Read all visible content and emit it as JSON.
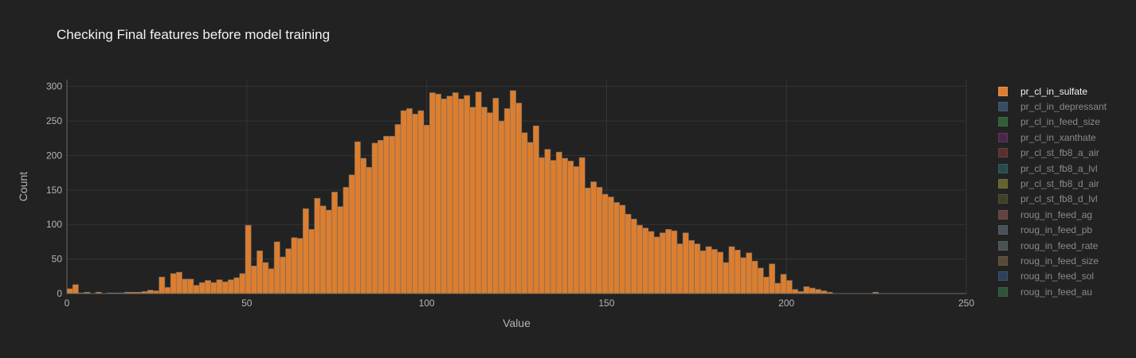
{
  "chart_data": {
    "type": "bar",
    "title": "Checking Final features before model training",
    "xlabel": "Value",
    "ylabel": "Count",
    "xlim": [
      0,
      250
    ],
    "ylim": [
      0,
      310
    ],
    "x_ticks": [
      "0",
      "50",
      "100",
      "150",
      "200",
      "250"
    ],
    "y_ticks": [
      "0",
      "50",
      "100",
      "150",
      "200",
      "250",
      "300"
    ],
    "grid": true,
    "legend_position": "right",
    "bin_width": 1.6,
    "bar_color": "#dc7e2f",
    "series": [
      {
        "name": "pr_cl_in_sulfate",
        "color": "#dc7e2f",
        "visible": true,
        "values": [
          7,
          13,
          1,
          2,
          0,
          2,
          0,
          1,
          1,
          1,
          2,
          2,
          2,
          3,
          5,
          4,
          24,
          9,
          29,
          31,
          21,
          21,
          12,
          16,
          19,
          16,
          20,
          17,
          20,
          23,
          29,
          99,
          40,
          62,
          45,
          36,
          75,
          53,
          65,
          81,
          80,
          123,
          93,
          138,
          127,
          121,
          147,
          126,
          154,
          172,
          220,
          196,
          183,
          218,
          222,
          228,
          228,
          245,
          265,
          268,
          260,
          265,
          244,
          291,
          289,
          282,
          286,
          291,
          282,
          287,
          270,
          292,
          270,
          262,
          283,
          250,
          268,
          294,
          276,
          233,
          219,
          243,
          197,
          209,
          193,
          205,
          196,
          192,
          184,
          197,
          153,
          162,
          154,
          144,
          140,
          132,
          128,
          115,
          108,
          99,
          95,
          90,
          82,
          88,
          93,
          91,
          72,
          88,
          77,
          72,
          62,
          68,
          64,
          60,
          45,
          68,
          63,
          52,
          59,
          47,
          37,
          24,
          43,
          15,
          28,
          19,
          6,
          3,
          10,
          8,
          6,
          4,
          2,
          0,
          0,
          0,
          0,
          0,
          0,
          0,
          2
        ]
      },
      {
        "name": "pr_cl_in_depressant",
        "color": "#4a6f9a",
        "visible": false
      },
      {
        "name": "pr_cl_in_feed_size",
        "color": "#3e8e47",
        "visible": false
      },
      {
        "name": "pr_cl_in_xanthate",
        "color": "#6e2a6e",
        "visible": false
      },
      {
        "name": "pr_cl_st_fb8_a_air",
        "color": "#8a3a3a",
        "visible": false
      },
      {
        "name": "pr_cl_st_fb8_a_lvl",
        "color": "#2a6e6e",
        "visible": false
      },
      {
        "name": "pr_cl_st_fb8_d_air",
        "color": "#9a9a3a",
        "visible": false
      },
      {
        "name": "pr_cl_st_fb8_d_lvl",
        "color": "#5a5a2a",
        "visible": false
      },
      {
        "name": "roug_in_feed_ag",
        "color": "#9a5a5a",
        "visible": false
      },
      {
        "name": "roug_in_feed_pb",
        "color": "#6a7a8a",
        "visible": false
      },
      {
        "name": "roug_in_feed_rate",
        "color": "#6a7a7a",
        "visible": false
      },
      {
        "name": "roug_in_feed_size",
        "color": "#8a6a4a",
        "visible": false
      },
      {
        "name": "roug_in_feed_sol",
        "color": "#3a5a8a",
        "visible": false
      },
      {
        "name": "roug_in_feed_au",
        "color": "#3a7a4a",
        "visible": false
      }
    ]
  }
}
